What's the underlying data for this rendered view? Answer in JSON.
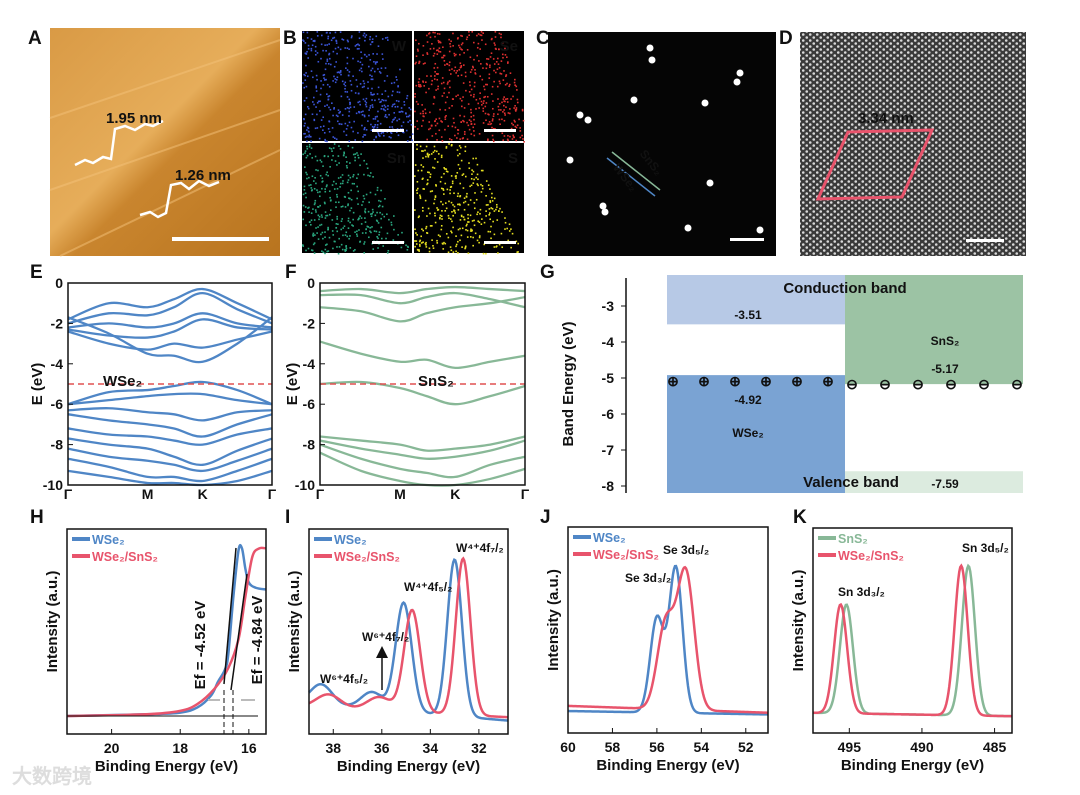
{
  "panels": {
    "A": {
      "label": "A",
      "annotations": [
        "1.95 nm",
        "1.26 nm"
      ]
    },
    "B": {
      "label": "B",
      "maps": [
        "W",
        "Se",
        "Sn",
        "S"
      ],
      "colors": [
        "#3b55d8",
        "#e03030",
        "#2aa880",
        "#e6e020"
      ]
    },
    "C": {
      "label": "C",
      "spots": [
        "SnS₂",
        "WSe₂"
      ]
    },
    "D": {
      "label": "D",
      "lattice": "3.34 nm"
    }
  },
  "watermark": "大数跨境",
  "colors": {
    "wse2": "#4f86c6",
    "hetero": "#e8546c",
    "sns2": "#88b897",
    "dashed": "#e05050"
  },
  "chart_data": [
    {
      "panel": "E",
      "type": "line",
      "title": "",
      "ylabel": "E (eV)",
      "xlabel": "",
      "ylim": [
        -10,
        0
      ],
      "yticks": [
        0,
        -2,
        -4,
        -6,
        -8,
        -10
      ],
      "kpoints": [
        "Γ",
        "M",
        "K",
        "Γ"
      ],
      "kfrac": [
        0,
        0.2,
        0.39,
        0.52,
        0.66,
        0.83,
        1
      ],
      "label": "WSe₂",
      "fermi": -5,
      "bands": [
        [
          -1.8,
          -1.0,
          -1.2,
          -0.8,
          -0.3,
          -1.0,
          -1.8
        ],
        [
          -2.0,
          -1.5,
          -1.6,
          -1.2,
          -0.5,
          -1.3,
          -2.0
        ],
        [
          -2.2,
          -2.0,
          -2.2,
          -2.0,
          -1.5,
          -2.0,
          -2.2
        ],
        [
          -2.3,
          -2.6,
          -2.7,
          -2.4,
          -1.8,
          -2.2,
          -2.3
        ],
        [
          -2.4,
          -3.0,
          -3.3,
          -3.0,
          -3.2,
          -2.8,
          -2.4
        ],
        [
          -1.7,
          -2.5,
          -3.5,
          -3.6,
          -3.9,
          -3.0,
          -1.7
        ],
        [
          -6.0,
          -5.4,
          -5.3,
          -5.1,
          -4.9,
          -5.3,
          -6.0
        ],
        [
          -6.0,
          -5.8,
          -5.6,
          -5.5,
          -5.5,
          -5.8,
          -6.0
        ],
        [
          -6.3,
          -6.2,
          -6.4,
          -6.5,
          -6.8,
          -6.4,
          -6.3
        ],
        [
          -6.5,
          -6.8,
          -7.0,
          -7.2,
          -7.6,
          -7.0,
          -6.5
        ],
        [
          -7.2,
          -7.5,
          -7.6,
          -7.8,
          -8.0,
          -7.5,
          -7.2
        ],
        [
          -7.7,
          -8.0,
          -8.2,
          -8.6,
          -9.0,
          -8.3,
          -7.7
        ],
        [
          -8.2,
          -8.6,
          -8.8,
          -9.0,
          -9.3,
          -8.8,
          -8.2
        ],
        [
          -8.7,
          -9.1,
          -9.6,
          -9.6,
          -9.8,
          -9.3,
          -8.7
        ],
        [
          -9.3,
          -9.6,
          -9.9,
          -9.9,
          -10,
          -9.8,
          -9.3
        ]
      ]
    },
    {
      "panel": "F",
      "type": "line",
      "title": "",
      "ylabel": "E (eV)",
      "xlabel": "",
      "ylim": [
        -10,
        0
      ],
      "yticks": [
        0,
        -2,
        -4,
        -6,
        -8,
        -10
      ],
      "kpoints": [
        "Γ",
        "M",
        "K",
        "Γ"
      ],
      "kfrac": [
        0,
        0.2,
        0.39,
        0.52,
        0.66,
        0.83,
        1
      ],
      "label": "SnS₂",
      "fermi": -5,
      "bands": [
        [
          -0.4,
          -0.3,
          -0.5,
          -0.3,
          -0.2,
          -0.3,
          -0.4
        ],
        [
          -0.6,
          -0.6,
          -1.0,
          -0.7,
          -0.5,
          -0.8,
          -1.2
        ],
        [
          -1.2,
          -1.4,
          -1.9,
          -1.5,
          -1.2,
          -1.0,
          -0.7
        ],
        [
          -2.9,
          -3.5,
          -3.9,
          -3.8,
          -4.2,
          -3.9,
          -3.6
        ],
        [
          -5.0,
          -4.9,
          -5.2,
          -5.6,
          -6.0,
          -5.6,
          -5.1
        ],
        [
          -7.6,
          -7.8,
          -8.0,
          -8.3,
          -8.2,
          -8.0,
          -7.6
        ],
        [
          -7.8,
          -8.2,
          -8.5,
          -8.7,
          -8.6,
          -8.3,
          -7.8
        ],
        [
          -8.0,
          -8.7,
          -9.2,
          -9.4,
          -9.6,
          -9.0,
          -8.6
        ],
        [
          -8.4,
          -9.3,
          -9.8,
          -10,
          -10,
          -9.7,
          -9.2
        ]
      ]
    },
    {
      "panel": "G",
      "type": "bar",
      "title": "",
      "ylabel": "Band Energy (eV)",
      "xlabel": "",
      "ylim": [
        -8.2,
        -2.2
      ],
      "yticks": [
        -3,
        -4,
        -5,
        -6,
        -7,
        -8
      ],
      "materials": [
        {
          "name": "WSe₂",
          "cb": -3.51,
          "vb": -4.92,
          "cb_label": "-3.51",
          "vb_label": "-4.92",
          "carrier": "⊕"
        },
        {
          "name": "SnS₂",
          "cb": -5.17,
          "vb": -7.59,
          "cb_label": "-5.17",
          "vb_label": "-7.59",
          "carrier": "⊖"
        }
      ],
      "cb_title": "Conduction band",
      "vb_title": "Valence band",
      "fill": [
        "#b7c9e6",
        "#7aa3d3",
        "#9cc3a4",
        "#dcebdf"
      ]
    },
    {
      "panel": "H",
      "type": "line",
      "xlabel": "Binding Energy (eV)",
      "ylabel": "Intensity (a.u.)",
      "xlim": [
        21.3,
        15.5
      ],
      "xticks": [
        20,
        18,
        16
      ],
      "series": [
        {
          "name": "WSe₂",
          "points": [
            [
              21.3,
              0
            ],
            [
              19,
              0.01
            ],
            [
              18,
              0.02
            ],
            [
              17.5,
              0.05
            ],
            [
              17.1,
              0.12
            ],
            [
              16.9,
              0.2
            ],
            [
              16.7,
              0.27
            ],
            [
              16.6,
              0.36
            ],
            [
              16.45,
              0.7
            ],
            [
              16.3,
              0.97
            ],
            [
              16.2,
              0.98
            ],
            [
              16.1,
              0.86
            ],
            [
              16.0,
              0.78
            ],
            [
              15.8,
              0.75
            ],
            [
              15.5,
              0.74
            ]
          ]
        },
        {
          "name": "WSe₂/SnS₂",
          "points": [
            [
              21.3,
              0
            ],
            [
              19,
              0.01
            ],
            [
              18,
              0.03
            ],
            [
              17.5,
              0.07
            ],
            [
              17,
              0.16
            ],
            [
              16.6,
              0.28
            ],
            [
              16.3,
              0.45
            ],
            [
              16.1,
              0.7
            ],
            [
              15.9,
              0.93
            ],
            [
              15.7,
              0.98
            ],
            [
              15.5,
              0.98
            ]
          ]
        }
      ],
      "annotations": [
        "Ef = -4.52 eV",
        "Ef = -4.84 eV"
      ],
      "edges": [
        16.7,
        16.35
      ]
    },
    {
      "panel": "I",
      "type": "line",
      "xlabel": "Binding Energy (eV)",
      "ylabel": "Intensity (a.u.)",
      "xlim": [
        39,
        30.8
      ],
      "xticks": [
        38,
        36,
        34,
        32
      ],
      "series": [
        {
          "name": "WSe₂",
          "baseline": [
            0.12,
            0.02
          ],
          "peaks": [
            [
              38.5,
              0.12,
              0.45
            ],
            [
              36.4,
              0.1,
              0.45
            ],
            [
              35.1,
              0.64,
              0.33
            ],
            [
              33.0,
              0.92,
              0.3
            ]
          ]
        },
        {
          "name": "WSe₂/SnS₂",
          "baseline": [
            0.1,
            0.04
          ],
          "peaks": [
            [
              38.2,
              0.08,
              0.5
            ],
            [
              36.1,
              0.08,
              0.5
            ],
            [
              34.75,
              0.6,
              0.33
            ],
            [
              32.65,
              0.92,
              0.3
            ]
          ]
        }
      ],
      "annotations": [
        "W⁴⁺4f₇/₂",
        "W⁴⁺4f₅/₂",
        "W⁶⁺4f₇/₂",
        "W⁶⁺4f₅/₂"
      ]
    },
    {
      "panel": "J",
      "type": "line",
      "xlabel": "Binding Energy (eV)",
      "ylabel": "Intensity (a.u.)",
      "xlim": [
        60,
        51
      ],
      "xticks": [
        60,
        58,
        56,
        54,
        52
      ],
      "series": [
        {
          "name": "WSe₂",
          "baseline": [
            0.07,
            0.05
          ],
          "peaks": [
            [
              56.0,
              0.55,
              0.3
            ],
            [
              55.15,
              0.85,
              0.3
            ]
          ]
        },
        {
          "name": "WSe₂/SnS₂",
          "baseline": [
            0.1,
            0.06
          ],
          "peaks": [
            [
              55.6,
              0.5,
              0.38
            ],
            [
              54.7,
              0.8,
              0.38
            ]
          ]
        }
      ],
      "annotations": [
        "Se 3d₅/₂",
        "Se 3d₃/₂"
      ]
    },
    {
      "panel": "K",
      "type": "line",
      "xlabel": "Binding Energy (eV)",
      "ylabel": "Intensity (a.u.)",
      "xlim": [
        497.5,
        483.8
      ],
      "xticks": [
        495,
        490,
        485
      ],
      "series": [
        {
          "name": "SnS₂",
          "baseline": [
            0.06,
            0.04
          ],
          "peaks": [
            [
              495.2,
              0.64,
              0.45
            ],
            [
              486.8,
              0.88,
              0.45
            ]
          ]
        },
        {
          "name": "WSe₂/SnS₂",
          "baseline": [
            0.06,
            0.04
          ],
          "peaks": [
            [
              495.6,
              0.64,
              0.45
            ],
            [
              487.3,
              0.88,
              0.45
            ]
          ]
        }
      ],
      "annotations": [
        "Sn 3d₅/₂",
        "Sn 3d₃/₂"
      ]
    }
  ]
}
